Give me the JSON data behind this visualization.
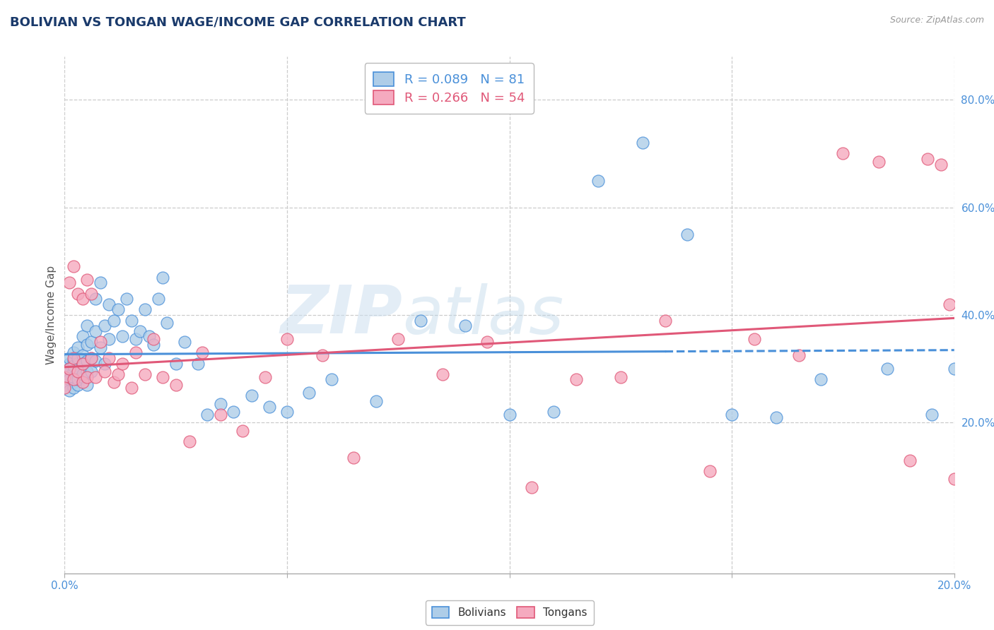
{
  "title": "BOLIVIAN VS TONGAN WAGE/INCOME GAP CORRELATION CHART",
  "source": "Source: ZipAtlas.com",
  "ylabel": "Wage/Income Gap",
  "xlim": [
    0.0,
    0.2
  ],
  "ylim": [
    -0.08,
    0.88
  ],
  "xticks": [
    0.0,
    0.05,
    0.1,
    0.15,
    0.2
  ],
  "xtick_labels": [
    "0.0%",
    "",
    "",
    "",
    "20.0%"
  ],
  "ytick_positions": [
    0.2,
    0.4,
    0.6,
    0.8
  ],
  "ytick_labels": [
    "20.0%",
    "40.0%",
    "60.0%",
    "80.0%"
  ],
  "bolivian_color": "#aecde8",
  "tongan_color": "#f5aabf",
  "trend_bolivian_color": "#4a90d9",
  "trend_tongan_color": "#e05878",
  "R_bolivian": 0.089,
  "N_bolivian": 81,
  "R_tongan": 0.266,
  "N_tongan": 54,
  "watermark_zip": "ZIP",
  "watermark_atlas": "atlas",
  "background_color": "#ffffff",
  "grid_color": "#cccccc",
  "title_color": "#1a3a6b",
  "axis_tick_color": "#4a90d9",
  "bolivian_points_x": [
    0.0,
    0.0,
    0.001,
    0.001,
    0.001,
    0.001,
    0.001,
    0.002,
    0.002,
    0.002,
    0.002,
    0.002,
    0.002,
    0.002,
    0.003,
    0.003,
    0.003,
    0.003,
    0.003,
    0.003,
    0.003,
    0.004,
    0.004,
    0.004,
    0.004,
    0.004,
    0.005,
    0.005,
    0.005,
    0.005,
    0.005,
    0.006,
    0.006,
    0.006,
    0.007,
    0.007,
    0.007,
    0.008,
    0.008,
    0.009,
    0.009,
    0.01,
    0.01,
    0.011,
    0.012,
    0.013,
    0.014,
    0.015,
    0.016,
    0.017,
    0.018,
    0.019,
    0.02,
    0.021,
    0.022,
    0.023,
    0.025,
    0.027,
    0.03,
    0.032,
    0.035,
    0.038,
    0.042,
    0.046,
    0.05,
    0.055,
    0.06,
    0.07,
    0.08,
    0.09,
    0.1,
    0.11,
    0.12,
    0.13,
    0.14,
    0.15,
    0.16,
    0.17,
    0.185,
    0.195,
    0.2
  ],
  "bolivian_points_y": [
    0.29,
    0.27,
    0.31,
    0.28,
    0.3,
    0.26,
    0.32,
    0.295,
    0.275,
    0.315,
    0.285,
    0.305,
    0.265,
    0.33,
    0.31,
    0.29,
    0.27,
    0.34,
    0.295,
    0.32,
    0.28,
    0.36,
    0.325,
    0.285,
    0.31,
    0.29,
    0.345,
    0.315,
    0.295,
    0.27,
    0.38,
    0.35,
    0.32,
    0.295,
    0.43,
    0.37,
    0.315,
    0.46,
    0.34,
    0.38,
    0.31,
    0.42,
    0.355,
    0.39,
    0.41,
    0.36,
    0.43,
    0.39,
    0.355,
    0.37,
    0.41,
    0.36,
    0.345,
    0.43,
    0.47,
    0.385,
    0.31,
    0.35,
    0.31,
    0.215,
    0.235,
    0.22,
    0.25,
    0.23,
    0.22,
    0.255,
    0.28,
    0.24,
    0.39,
    0.38,
    0.215,
    0.22,
    0.65,
    0.72,
    0.55,
    0.215,
    0.21,
    0.28,
    0.3,
    0.215,
    0.3
  ],
  "tongan_points_x": [
    0.0,
    0.0,
    0.001,
    0.001,
    0.002,
    0.002,
    0.002,
    0.003,
    0.003,
    0.004,
    0.004,
    0.004,
    0.005,
    0.005,
    0.006,
    0.006,
    0.007,
    0.008,
    0.009,
    0.01,
    0.011,
    0.012,
    0.013,
    0.015,
    0.016,
    0.018,
    0.02,
    0.022,
    0.025,
    0.028,
    0.031,
    0.035,
    0.04,
    0.045,
    0.05,
    0.058,
    0.065,
    0.075,
    0.085,
    0.095,
    0.105,
    0.115,
    0.125,
    0.135,
    0.145,
    0.155,
    0.165,
    0.175,
    0.183,
    0.19,
    0.194,
    0.197,
    0.199,
    0.2
  ],
  "tongan_points_y": [
    0.285,
    0.265,
    0.46,
    0.3,
    0.49,
    0.32,
    0.28,
    0.44,
    0.295,
    0.43,
    0.31,
    0.275,
    0.465,
    0.285,
    0.44,
    0.32,
    0.285,
    0.35,
    0.295,
    0.32,
    0.275,
    0.29,
    0.31,
    0.265,
    0.33,
    0.29,
    0.355,
    0.285,
    0.27,
    0.165,
    0.33,
    0.215,
    0.185,
    0.285,
    0.355,
    0.325,
    0.135,
    0.355,
    0.29,
    0.35,
    0.08,
    0.28,
    0.285,
    0.39,
    0.11,
    0.355,
    0.325,
    0.7,
    0.685,
    0.13,
    0.69,
    0.68,
    0.42,
    0.095
  ]
}
